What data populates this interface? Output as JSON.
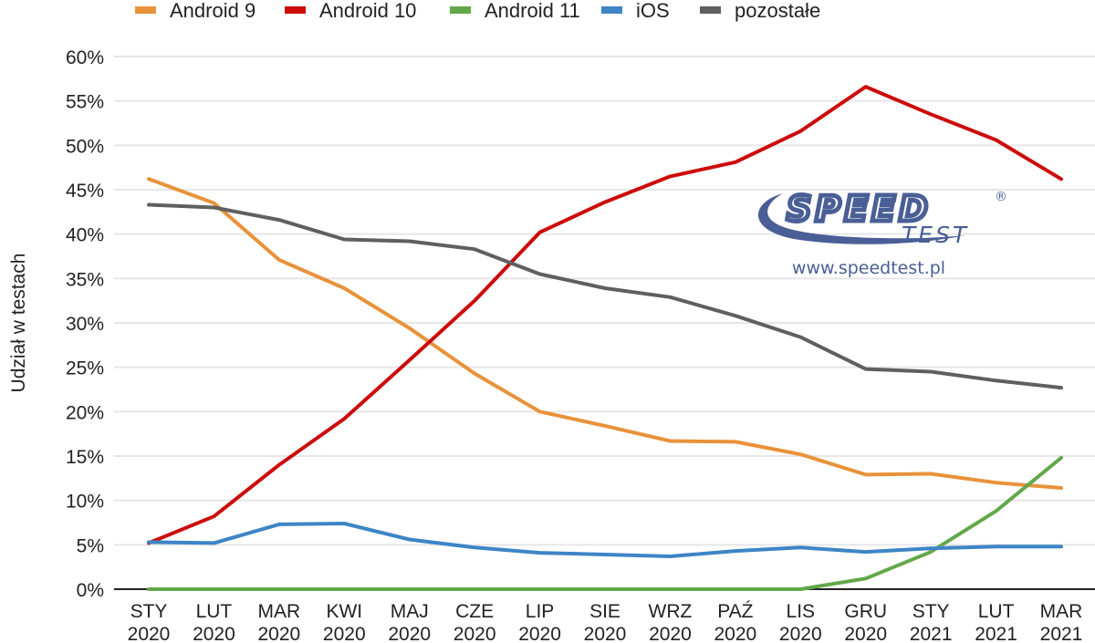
{
  "chart_data": {
    "type": "line",
    "title": "",
    "xlabel": "",
    "ylabel": "Udział w testach",
    "ylim": [
      0,
      60
    ],
    "y_ticks": [
      "0%",
      "5%",
      "10%",
      "15%",
      "20%",
      "25%",
      "30%",
      "35%",
      "40%",
      "45%",
      "50%",
      "55%",
      "60%"
    ],
    "y_tick_values": [
      0,
      5,
      10,
      15,
      20,
      25,
      30,
      35,
      40,
      45,
      50,
      55,
      60
    ],
    "grid": true,
    "legend_position": "top",
    "categories": [
      {
        "month": "STY",
        "year": "2020"
      },
      {
        "month": "LUT",
        "year": "2020"
      },
      {
        "month": "MAR",
        "year": "2020"
      },
      {
        "month": "KWI",
        "year": "2020"
      },
      {
        "month": "MAJ",
        "year": "2020"
      },
      {
        "month": "CZE",
        "year": "2020"
      },
      {
        "month": "LIP",
        "year": "2020"
      },
      {
        "month": "SIE",
        "year": "2020"
      },
      {
        "month": "WRZ",
        "year": "2020"
      },
      {
        "month": "PAŹ",
        "year": "2020"
      },
      {
        "month": "LIS",
        "year": "2020"
      },
      {
        "month": "GRU",
        "year": "2020"
      },
      {
        "month": "STY",
        "year": "2021"
      },
      {
        "month": "LUT",
        "year": "2021"
      },
      {
        "month": "MAR",
        "year": "2021"
      }
    ],
    "series": [
      {
        "name": "Android 9",
        "color": "#e8923a",
        "values": [
          46.2,
          43.5,
          37.1,
          33.9,
          29.4,
          24.3,
          20.0,
          18.4,
          16.7,
          16.6,
          15.2,
          12.9,
          13.0,
          12.0,
          11.4
        ]
      },
      {
        "name": "Android 10",
        "color": "#cc0b0b",
        "values": [
          5.2,
          8.2,
          14.0,
          19.2,
          25.8,
          32.5,
          40.2,
          43.6,
          46.5,
          48.1,
          51.6,
          56.6,
          53.5,
          50.6,
          46.2
        ]
      },
      {
        "name": "Android 11",
        "color": "#62a84a",
        "values": [
          0,
          0,
          0,
          0,
          0,
          0,
          0,
          0,
          0,
          0,
          0,
          1.2,
          4.2,
          8.8,
          14.8
        ]
      },
      {
        "name": "iOS",
        "color": "#3d85c6",
        "values": [
          5.3,
          5.2,
          7.3,
          7.4,
          5.6,
          4.7,
          4.1,
          3.9,
          3.7,
          4.3,
          4.7,
          4.2,
          4.6,
          4.8,
          4.8
        ]
      },
      {
        "name": "pozostałe",
        "color": "#5f5f5f",
        "values": [
          43.3,
          43.0,
          41.6,
          39.4,
          39.2,
          38.3,
          35.5,
          33.9,
          32.9,
          30.8,
          28.4,
          24.8,
          24.5,
          23.5,
          22.7
        ]
      }
    ]
  },
  "watermark": {
    "brand_top": "SPEED",
    "brand_bottom": "TEST",
    "registered": "®",
    "url": "www.speedtest.pl",
    "color": "#4a5f96"
  }
}
